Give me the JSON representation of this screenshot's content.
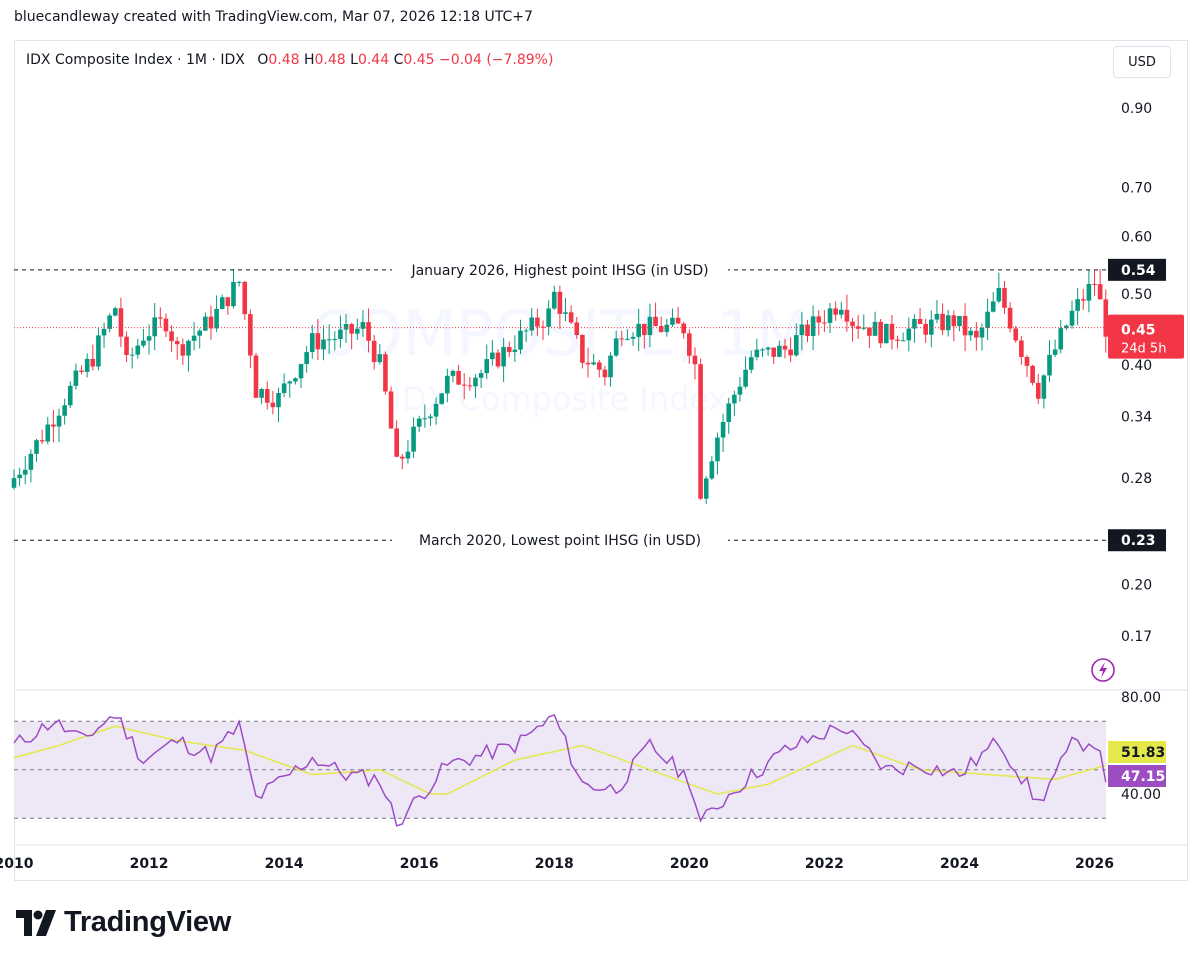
{
  "credit": "bluecandleway created with TradingView.com, Mar 07, 2026 12:18 UTC+7",
  "legend": {
    "symbol": "IDX Composite Index · 1M · IDX",
    "o_label": "O",
    "o_value": "0.48",
    "h_label": "H",
    "h_value": "0.48",
    "l_label": "L",
    "l_value": "0.44",
    "c_label": "C",
    "c_value": "0.45",
    "change": "−0.04 (−7.89%)"
  },
  "currency_button": "USD",
  "watermark": {
    "line1": "COMPOSITE, 1M",
    "line2": "IDX Composite Index"
  },
  "brand": "TradingView",
  "colors": {
    "up": "#089981",
    "down": "#f23645",
    "rsi": "#9c4dc4",
    "rsi_ma": "#e5e84a",
    "band": "#ede7f6"
  },
  "chart_data": [
    {
      "type": "candlestick",
      "price_scale": "log",
      "y_ticks": [
        0.9,
        0.7,
        0.6,
        0.5,
        0.4,
        0.34,
        0.28,
        0.2,
        0.17
      ],
      "x_ticks": [
        {
          "label": "2010",
          "year": 2010
        },
        {
          "label": "2012",
          "year": 2012
        },
        {
          "label": "2014",
          "year": 2014
        },
        {
          "label": "2016",
          "year": 2016
        },
        {
          "label": "2018",
          "year": 2018
        },
        {
          "label": "2020",
          "year": 2020
        },
        {
          "label": "2022",
          "year": 2022
        },
        {
          "label": "2024",
          "year": 2024
        },
        {
          "label": "2026",
          "year": 2026
        }
      ],
      "current_price": {
        "value": 0.45,
        "label": "0.45",
        "countdown": "24d 5h"
      },
      "levels": [
        {
          "value": 0.54,
          "label": "0.54",
          "annotation": "January 2026, Highest point IHSG (in USD)"
        },
        {
          "value": 0.23,
          "label": "0.23",
          "annotation": "March 2020, Lowest point IHSG (in USD)"
        }
      ],
      "close_path": [
        [
          "2010-01",
          0.28
        ],
        [
          "2010-06",
          0.32
        ],
        [
          "2010-12",
          0.38
        ],
        [
          "2011-03",
          0.41
        ],
        [
          "2011-07",
          0.48
        ],
        [
          "2011-09",
          0.4
        ],
        [
          "2011-12",
          0.44
        ],
        [
          "2012-04",
          0.46
        ],
        [
          "2012-06",
          0.42
        ],
        [
          "2012-12",
          0.46
        ],
        [
          "2013-05",
          0.52
        ],
        [
          "2013-06",
          0.47
        ],
        [
          "2013-08",
          0.37
        ],
        [
          "2013-12",
          0.36
        ],
        [
          "2014-06",
          0.43
        ],
        [
          "2014-12",
          0.44
        ],
        [
          "2015-03",
          0.45
        ],
        [
          "2015-06",
          0.4
        ],
        [
          "2015-09",
          0.29
        ],
        [
          "2015-12",
          0.32
        ],
        [
          "2016-06",
          0.38
        ],
        [
          "2016-12",
          0.39
        ],
        [
          "2017-06",
          0.43
        ],
        [
          "2017-12",
          0.47
        ],
        [
          "2018-01",
          0.5
        ],
        [
          "2018-06",
          0.41
        ],
        [
          "2018-10",
          0.39
        ],
        [
          "2019-01",
          0.45
        ],
        [
          "2019-06",
          0.45
        ],
        [
          "2019-12",
          0.45
        ],
        [
          "2020-02",
          0.4
        ],
        [
          "2020-03",
          0.27
        ],
        [
          "2020-06",
          0.32
        ],
        [
          "2020-12",
          0.41
        ],
        [
          "2021-06",
          0.42
        ],
        [
          "2021-12",
          0.46
        ],
        [
          "2022-04",
          0.49
        ],
        [
          "2022-06",
          0.46
        ],
        [
          "2022-12",
          0.44
        ],
        [
          "2023-06",
          0.45
        ],
        [
          "2023-12",
          0.46
        ],
        [
          "2024-04",
          0.43
        ],
        [
          "2024-08",
          0.5
        ],
        [
          "2024-12",
          0.42
        ],
        [
          "2025-03",
          0.37
        ],
        [
          "2025-06",
          0.42
        ],
        [
          "2025-09",
          0.47
        ],
        [
          "2026-01",
          0.52
        ],
        [
          "2026-03",
          0.45
        ]
      ]
    },
    {
      "type": "line",
      "indicator": "RSI",
      "y_ticks": [
        80.0,
        40.0
      ],
      "band": [
        30,
        70
      ],
      "mid_line": 50,
      "readouts": {
        "ma": "51.83",
        "rsi": "47.15"
      },
      "rsi_path": [
        [
          "2010-01",
          60
        ],
        [
          "2010-08",
          70
        ],
        [
          "2011-01",
          62
        ],
        [
          "2011-07",
          73
        ],
        [
          "2011-12",
          54
        ],
        [
          "2012-06",
          62
        ],
        [
          "2012-12",
          56
        ],
        [
          "2013-05",
          68
        ],
        [
          "2013-08",
          38
        ],
        [
          "2014-06",
          55
        ],
        [
          "2014-12",
          48
        ],
        [
          "2015-06",
          46
        ],
        [
          "2015-09",
          28
        ],
        [
          "2016-06",
          52
        ],
        [
          "2017-06",
          60
        ],
        [
          "2018-01",
          72
        ],
        [
          "2018-06",
          44
        ],
        [
          "2018-12",
          42
        ],
        [
          "2019-06",
          60
        ],
        [
          "2020-01",
          46
        ],
        [
          "2020-03",
          28
        ],
        [
          "2020-09",
          42
        ],
        [
          "2021-06",
          58
        ],
        [
          "2022-04",
          68
        ],
        [
          "2022-12",
          50
        ],
        [
          "2023-06",
          52
        ],
        [
          "2024-01",
          48
        ],
        [
          "2024-08",
          62
        ],
        [
          "2025-03",
          36
        ],
        [
          "2025-09",
          60
        ],
        [
          "2026-01",
          62
        ],
        [
          "2026-03",
          47
        ]
      ],
      "ma_path": [
        [
          "2010-01",
          55
        ],
        [
          "2010-09",
          60
        ],
        [
          "2011-07",
          68
        ],
        [
          "2012-06",
          62
        ],
        [
          "2013-06",
          58
        ],
        [
          "2014-06",
          48
        ],
        [
          "2015-06",
          50
        ],
        [
          "2016-03",
          40
        ],
        [
          "2016-06",
          40
        ],
        [
          "2017-06",
          54
        ],
        [
          "2018-06",
          60
        ],
        [
          "2019-06",
          50
        ],
        [
          "2020-06",
          40
        ],
        [
          "2021-03",
          44
        ],
        [
          "2022-06",
          60
        ],
        [
          "2023-06",
          50
        ],
        [
          "2024-06",
          48
        ],
        [
          "2025-06",
          46
        ],
        [
          "2026-03",
          51.83
        ]
      ]
    }
  ]
}
